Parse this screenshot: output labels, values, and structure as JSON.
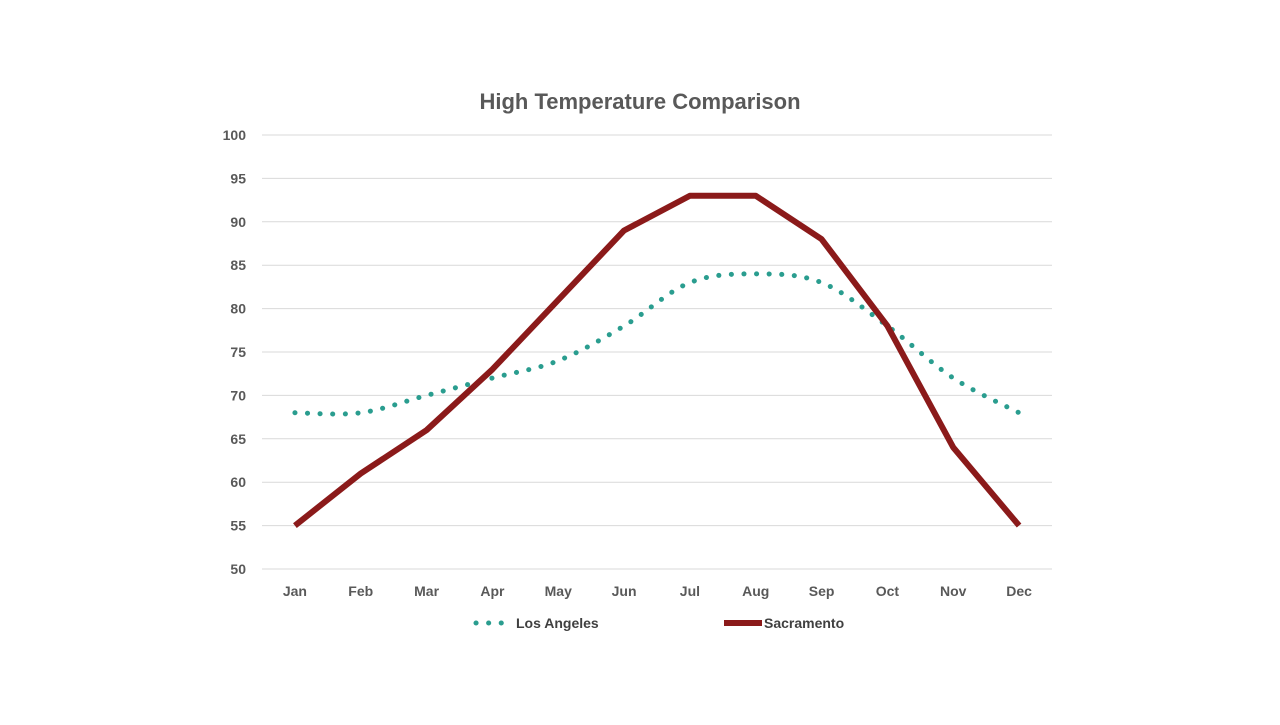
{
  "chart_data": {
    "type": "line",
    "title": "High Temperature Comparison",
    "xlabel": "",
    "ylabel": "",
    "categories": [
      "Jan",
      "Feb",
      "Mar",
      "Apr",
      "May",
      "Jun",
      "Jul",
      "Aug",
      "Sep",
      "Oct",
      "Nov",
      "Dec"
    ],
    "ylim": [
      50,
      100
    ],
    "yticks": [
      50,
      55,
      60,
      65,
      70,
      75,
      80,
      85,
      90,
      95,
      100
    ],
    "grid": true,
    "legend_position": "bottom",
    "series": [
      {
        "name": "Los Angeles",
        "values": [
          68,
          68,
          70,
          72,
          74,
          78,
          83,
          84,
          83,
          78,
          72,
          68
        ],
        "color": "#2a9d8f",
        "style": "dotted",
        "smooth": true
      },
      {
        "name": "Sacramento",
        "values": [
          55,
          61,
          66,
          73,
          81,
          89,
          93,
          93,
          88,
          78,
          64,
          55
        ],
        "color": "#8b1a1a",
        "style": "solid",
        "smooth": false
      }
    ]
  }
}
